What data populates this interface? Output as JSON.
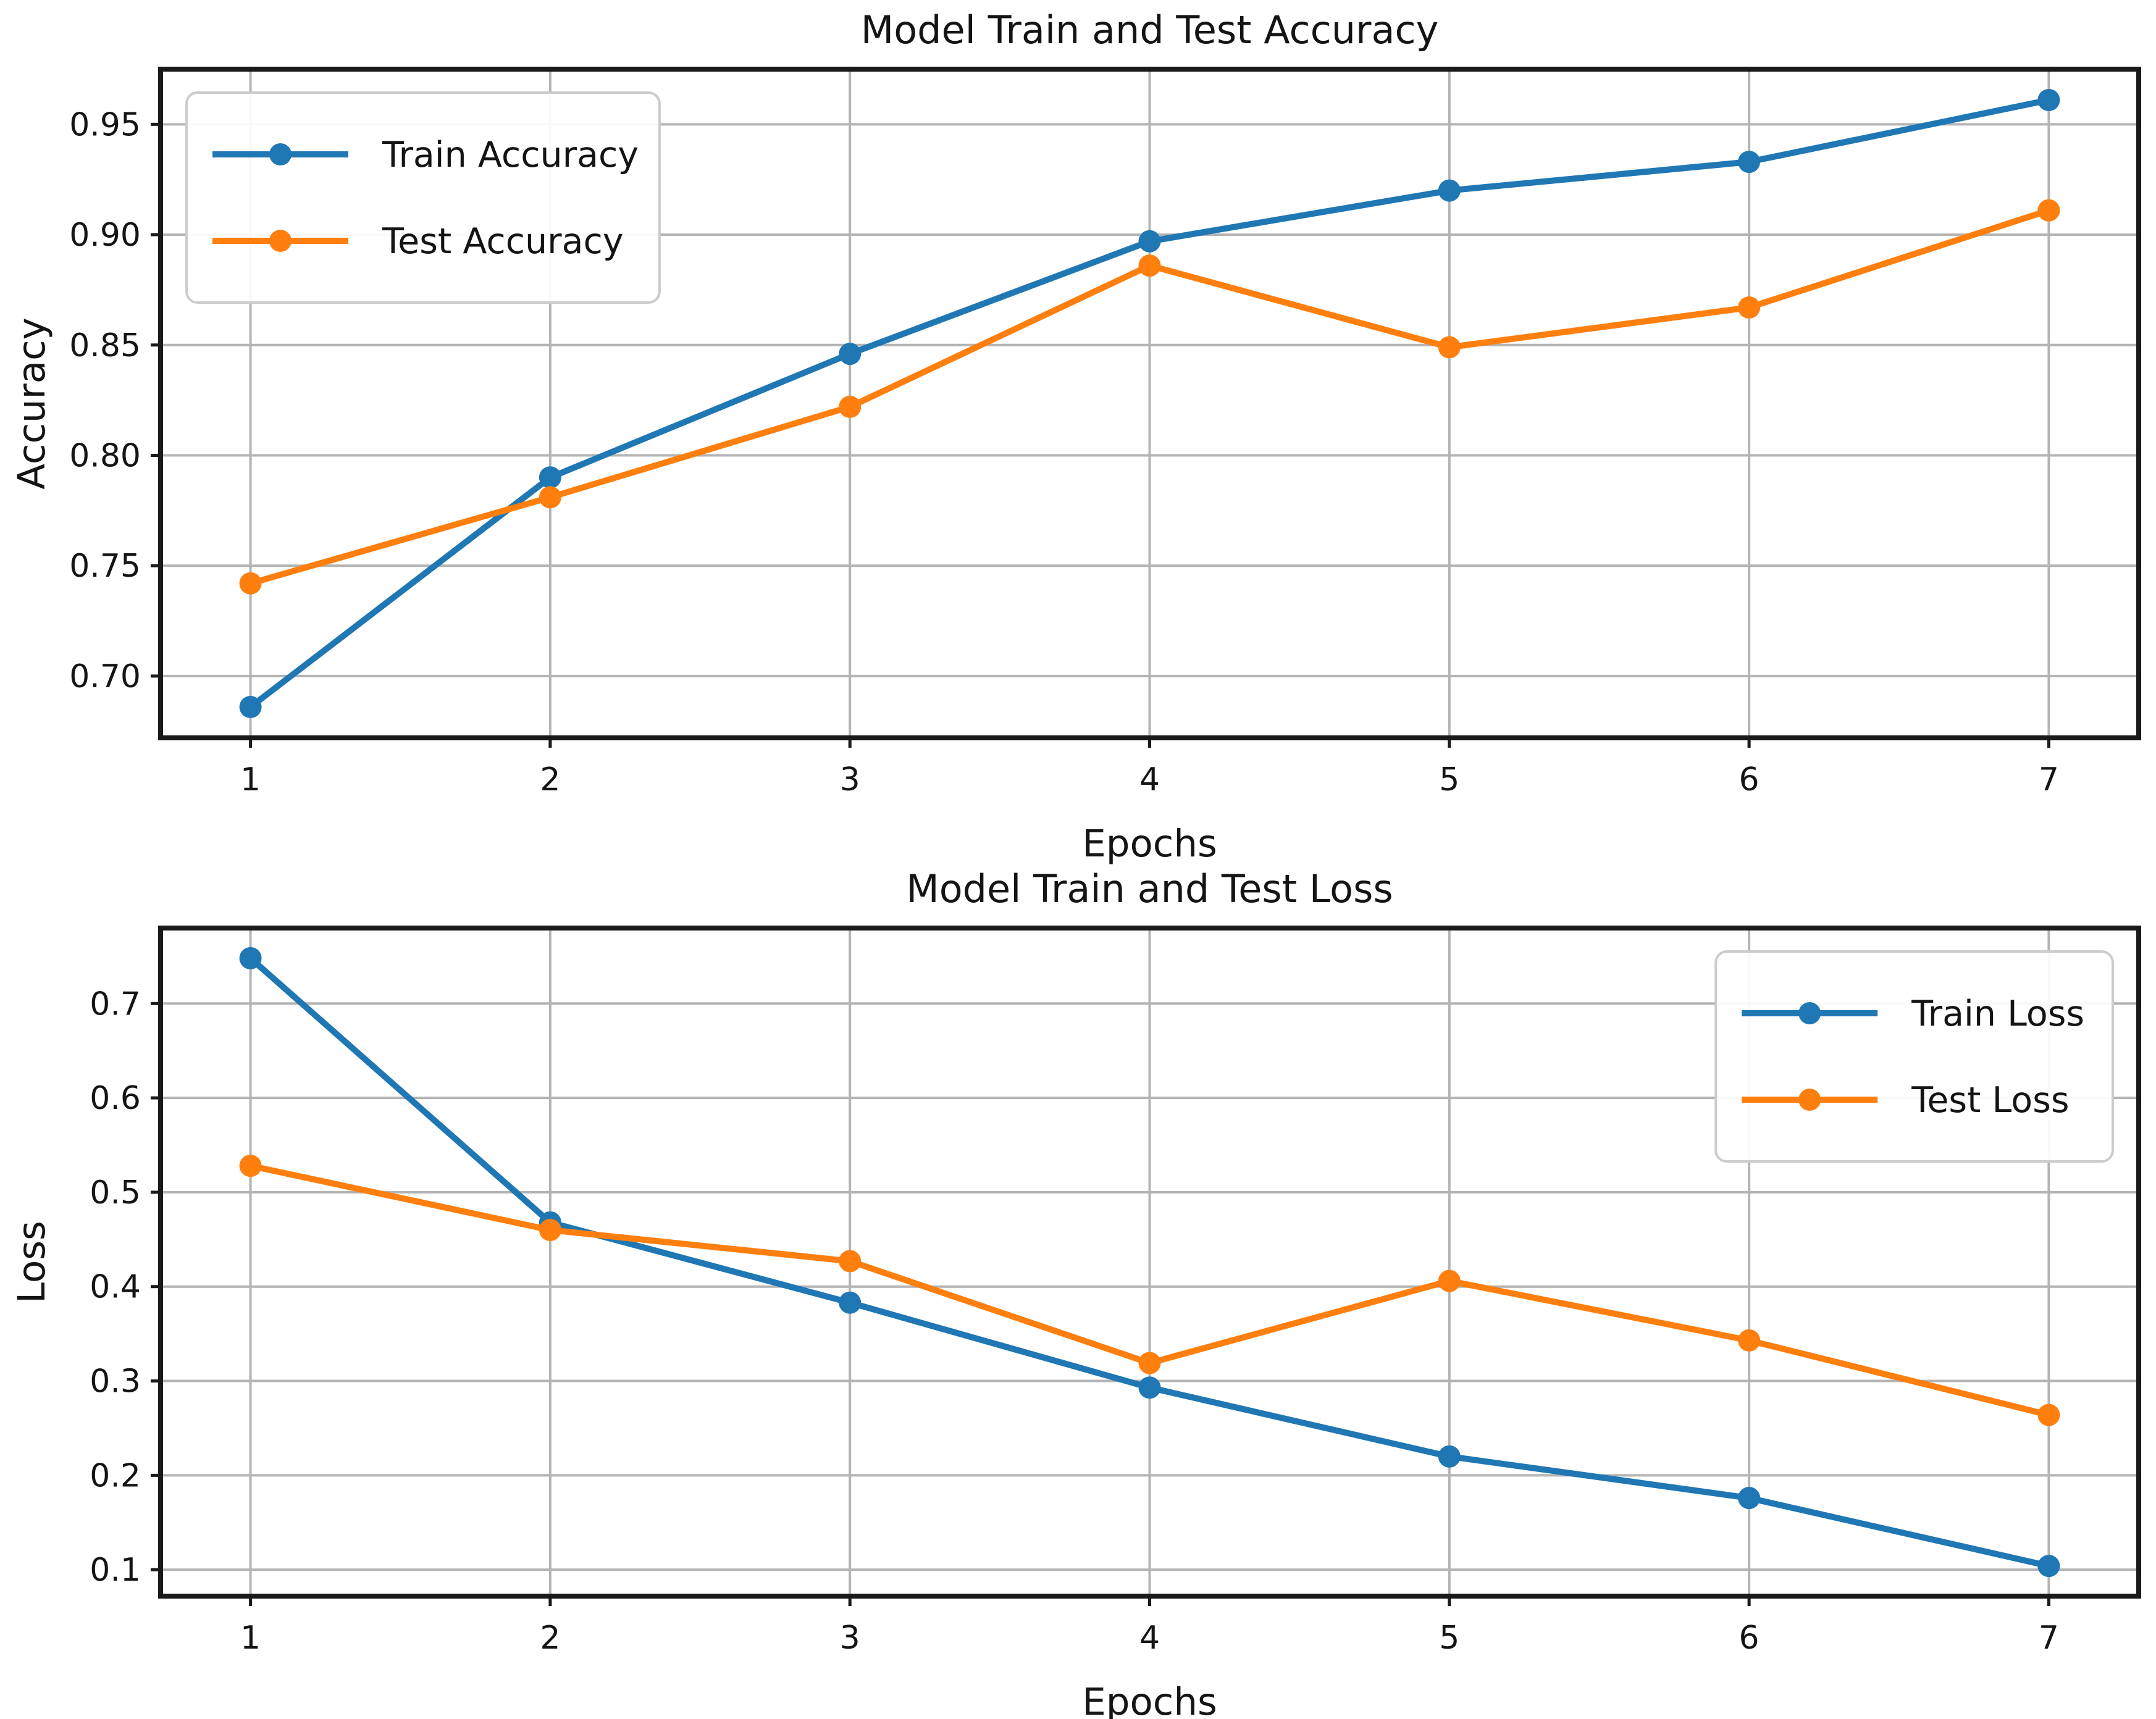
{
  "figure": {
    "background": "#ffffff",
    "grid_color": "#b4b4b4",
    "spine_color": "#1a1a1a",
    "text_color": "#141414"
  },
  "chart_data": [
    {
      "type": "line",
      "title": "Model Train and Test Accuracy",
      "xlabel": "Epochs",
      "ylabel": "Accuracy",
      "x": [
        1,
        2,
        3,
        4,
        5,
        6,
        7
      ],
      "xtick_labels": [
        "1",
        "2",
        "3",
        "4",
        "5",
        "6",
        "7"
      ],
      "xlim": [
        0.7,
        7.3
      ],
      "ylim": [
        0.672,
        0.975
      ],
      "yticks": [
        0.7,
        0.75,
        0.8,
        0.85,
        0.9,
        0.95
      ],
      "ytick_labels": [
        "0.70",
        "0.75",
        "0.80",
        "0.85",
        "0.90",
        "0.95"
      ],
      "grid": true,
      "legend_position": "upper-left",
      "series": [
        {
          "name": "Train Accuracy",
          "color": "#1f77b4",
          "marker": "circle",
          "values": [
            0.686,
            0.79,
            0.846,
            0.897,
            0.92,
            0.933,
            0.961
          ]
        },
        {
          "name": "Test Accuracy",
          "color": "#ff7f0e",
          "marker": "circle",
          "values": [
            0.742,
            0.781,
            0.822,
            0.886,
            0.849,
            0.867,
            0.911
          ]
        }
      ]
    },
    {
      "type": "line",
      "title": "Model Train and Test Loss",
      "xlabel": "Epochs",
      "ylabel": "Loss",
      "x": [
        1,
        2,
        3,
        4,
        5,
        6,
        7
      ],
      "xtick_labels": [
        "1",
        "2",
        "3",
        "4",
        "5",
        "6",
        "7"
      ],
      "xlim": [
        0.7,
        7.3
      ],
      "ylim": [
        0.072,
        0.78
      ],
      "yticks": [
        0.1,
        0.2,
        0.3,
        0.4,
        0.5,
        0.6,
        0.7
      ],
      "ytick_labels": [
        "0.1",
        "0.2",
        "0.3",
        "0.4",
        "0.5",
        "0.6",
        "0.7"
      ],
      "grid": true,
      "legend_position": "upper-right",
      "series": [
        {
          "name": "Train Loss",
          "color": "#1f77b4",
          "marker": "circle",
          "values": [
            0.748,
            0.468,
            0.383,
            0.293,
            0.22,
            0.176,
            0.104
          ]
        },
        {
          "name": "Test Loss",
          "color": "#ff7f0e",
          "marker": "circle",
          "values": [
            0.528,
            0.46,
            0.427,
            0.319,
            0.406,
            0.343,
            0.264
          ]
        }
      ]
    }
  ]
}
